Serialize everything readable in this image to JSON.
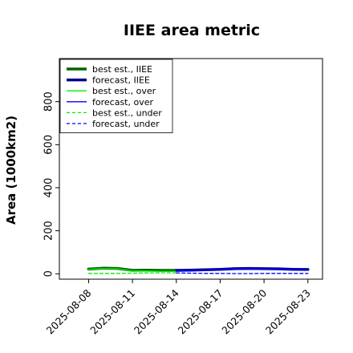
{
  "chart_data": {
    "type": "line",
    "title": "IIEE area metric",
    "xlabel": "",
    "ylabel": "Area (1000km2)",
    "x_ticks": [
      "2025-08-08",
      "2025-08-11",
      "2025-08-14",
      "2025-08-17",
      "2025-08-20",
      "2025-08-23"
    ],
    "highlighted_tick": "2025-08-14",
    "highlight_color": "#008000",
    "xlim": [
      "2025-08-06",
      "2025-08-24"
    ],
    "ylim": [
      -25,
      1000
    ],
    "y_ticks": [
      0,
      200,
      400,
      600,
      800
    ],
    "grid": false,
    "legend_position": "top-left",
    "series": [
      {
        "name": "best est., IIEE",
        "color": "#006400",
        "style": "solid",
        "width": "thick",
        "x": [
          "2025-08-08",
          "2025-08-09",
          "2025-08-10",
          "2025-08-11",
          "2025-08-12",
          "2025-08-13",
          "2025-08-14"
        ],
        "y": [
          22,
          26,
          25,
          16,
          17,
          16,
          16
        ]
      },
      {
        "name": "forecast, IIEE",
        "color": "#00008b",
        "style": "solid",
        "width": "thick",
        "x": [
          "2025-08-14",
          "2025-08-15",
          "2025-08-16",
          "2025-08-17",
          "2025-08-18",
          "2025-08-19",
          "2025-08-20",
          "2025-08-21",
          "2025-08-22",
          "2025-08-23"
        ],
        "y": [
          16,
          17,
          19,
          21,
          24,
          25,
          24,
          23,
          21,
          20
        ]
      },
      {
        "name": "best est., over",
        "color": "#00ee00",
        "style": "solid",
        "width": "thin",
        "x": [
          "2025-08-08",
          "2025-08-09",
          "2025-08-10",
          "2025-08-11",
          "2025-08-12",
          "2025-08-13",
          "2025-08-14"
        ],
        "y": [
          21,
          24,
          24,
          13,
          13,
          11,
          11
        ]
      },
      {
        "name": "forecast, over",
        "color": "#0000ff",
        "style": "solid",
        "width": "thin",
        "x": [
          "2025-08-14",
          "2025-08-15",
          "2025-08-16",
          "2025-08-17",
          "2025-08-18",
          "2025-08-19",
          "2025-08-20",
          "2025-08-21",
          "2025-08-22",
          "2025-08-23"
        ],
        "y": [
          12,
          14,
          17,
          20,
          23,
          24,
          22,
          21,
          19,
          18
        ]
      },
      {
        "name": "best est., under",
        "color": "#00ee00",
        "style": "dashed",
        "width": "thin",
        "x": [
          "2025-08-08",
          "2025-08-09",
          "2025-08-10",
          "2025-08-11",
          "2025-08-12",
          "2025-08-13",
          "2025-08-14"
        ],
        "y": [
          2,
          2,
          2,
          3,
          4,
          5,
          5
        ]
      },
      {
        "name": "forecast, under",
        "color": "#0000ff",
        "style": "dashed",
        "width": "thin",
        "x": [
          "2025-08-14",
          "2025-08-15",
          "2025-08-16",
          "2025-08-17",
          "2025-08-18",
          "2025-08-19",
          "2025-08-20",
          "2025-08-21",
          "2025-08-22",
          "2025-08-23"
        ],
        "y": [
          4,
          3,
          2,
          2,
          1,
          1,
          2,
          2,
          2,
          2
        ]
      }
    ]
  }
}
